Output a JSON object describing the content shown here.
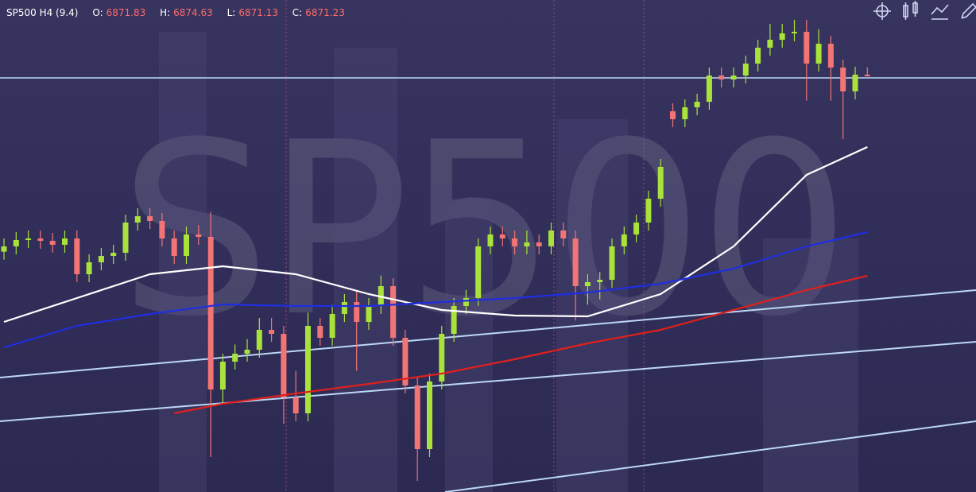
{
  "header": {
    "symbol": "SP500 H4 (9.4)",
    "labels": [
      "O:",
      "H:",
      "L:",
      "C:"
    ]
  },
  "watermark": "SP500",
  "chart_data": {
    "type": "candlestick",
    "categories": [
      null,
      null,
      null,
      null,
      null,
      null,
      null,
      null,
      null,
      null,
      null,
      null,
      null,
      null,
      null,
      null,
      null,
      null,
      null,
      null,
      null,
      null,
      null,
      null,
      null,
      null,
      null,
      null,
      null,
      null,
      null,
      null,
      null,
      null,
      null,
      null,
      null,
      null,
      null,
      null,
      null,
      null,
      null,
      null,
      null,
      null,
      null,
      null,
      null,
      null,
      null,
      null,
      null,
      null,
      null,
      null,
      null,
      null,
      null,
      null,
      null,
      null,
      null,
      null,
      null,
      null,
      null,
      null,
      null,
      null,
      null,
      null
    ],
    "ylim": [
      6714.3,
      6900
    ],
    "up_color": "#a9e23a",
    "down_color": "#f27474",
    "open": [
      6805,
      6807,
      6809.4,
      6810,
      6809.1,
      6807.6,
      6810,
      6796.5,
      6801,
      6803.4,
      6804.6,
      6816,
      6818.4,
      6816.6,
      6810,
      6803.4,
      6811.5,
      6810.6,
      6753,
      6763.5,
      6766.5,
      6768,
      6775.5,
      6774,
      6750,
      6744,
      6777,
      6772.5,
      6781.5,
      6786,
      6778.5,
      6784.5,
      6792,
      6772.5,
      6754.5,
      6730.5,
      6756,
      6774,
      6784.5,
      6787.5,
      6807,
      6811.5,
      6810,
      6807,
      6808.5,
      6807,
      6813,
      6810,
      6792,
      6793.5,
      6794.4,
      6807,
      6811.5,
      6816,
      6825,
      6858,
      6855,
      6859.5,
      6861.6,
      6871.5,
      6870,
      6871.5,
      6876,
      6882,
      6885,
      6887.4,
      6888,
      6876,
      6883.5,
      6874.5,
      6865.5,
      6871.83
    ],
    "high": [
      6810,
      6812.4,
      6813,
      6813,
      6812.1,
      6813,
      6813,
      6804,
      6806.4,
      6807.6,
      6819,
      6821.4,
      6821.4,
      6819.6,
      6813,
      6814.5,
      6815,
      6820,
      6766.5,
      6770,
      6772,
      6780,
      6780,
      6777,
      6760,
      6782,
      6780,
      6785,
      6789,
      6790,
      6787.5,
      6796,
      6795,
      6775.5,
      6757.5,
      6759,
      6777,
      6787.5,
      6790.5,
      6810,
      6814.5,
      6814.5,
      6813,
      6813,
      6811.5,
      6816,
      6816,
      6813,
      6796.5,
      6797.4,
      6810,
      6814.5,
      6819,
      6828,
      6840,
      6861,
      6862.5,
      6864.6,
      6874.5,
      6874.5,
      6874.5,
      6879,
      6885,
      6891,
      6891,
      6892.5,
      6892.5,
      6889,
      6886.5,
      6877.5,
      6874.8,
      6874.63
    ],
    "low": [
      6802,
      6804,
      6806.4,
      6806.1,
      6804.6,
      6804.6,
      6793.5,
      6793.5,
      6798,
      6800.4,
      6801.6,
      6813,
      6813.6,
      6807,
      6800.4,
      6800.4,
      6807.6,
      6727.5,
      6748,
      6760.5,
      6763.5,
      6765,
      6771,
      6740,
      6741,
      6741,
      6769.5,
      6769.5,
      6778.5,
      6760,
      6775.5,
      6781.5,
      6769.5,
      6751.5,
      6718.5,
      6727.5,
      6753,
      6771,
      6781.5,
      6784.5,
      6804,
      6807,
      6804,
      6804,
      6804,
      6804,
      6807,
      6779,
      6785,
      6787,
      6791.4,
      6804,
      6808.5,
      6813,
      6822,
      6852,
      6852,
      6856.5,
      6858.6,
      6867,
      6867,
      6868.5,
      6873,
      6879,
      6882,
      6884.4,
      6862,
      6873,
      6862,
      6847.5,
      6862.5,
      6871.13
    ],
    "close": [
      6807,
      6809.4,
      6810,
      6809.1,
      6807.6,
      6810,
      6796.5,
      6801,
      6803.4,
      6804.6,
      6816,
      6818.4,
      6816.6,
      6810,
      6803.4,
      6811.5,
      6810.6,
      6753,
      6763.5,
      6766.5,
      6768,
      6775.5,
      6774,
      6750,
      6744,
      6777,
      6772.5,
      6781.5,
      6786,
      6778.5,
      6784.5,
      6792,
      6772.5,
      6754.5,
      6730.5,
      6756,
      6774,
      6784.5,
      6787.5,
      6807,
      6811.5,
      6810,
      6807,
      6808.5,
      6807,
      6813,
      6810,
      6792,
      6793.5,
      6794.4,
      6807,
      6811.5,
      6816,
      6825,
      6837,
      6855,
      6859.5,
      6861.6,
      6871.5,
      6870,
      6871.5,
      6876,
      6882,
      6885,
      6887.4,
      6888,
      6876,
      6883.5,
      6874.5,
      6865.5,
      6871.83,
      6871.23
    ],
    "lines": [
      {
        "color": "#ffffff",
        "x": [
          0,
          6,
          12,
          18,
          24,
          30,
          36,
          42,
          48,
          54,
          60,
          66,
          71
        ],
        "values": [
          6778.5,
          6787.5,
          6796.5,
          6799.5,
          6796.5,
          6789,
          6783,
          6780.9,
          6780.6,
          6789,
          6807,
          6834,
          6844.5
        ]
      },
      {
        "color": "#1f2ee0",
        "x": [
          0,
          6,
          12,
          18,
          24,
          30,
          36,
          42,
          48,
          54,
          60,
          66,
          71
        ],
        "values": [
          6768.9,
          6777,
          6781.5,
          6785.1,
          6784.5,
          6784.5,
          6786,
          6787.5,
          6789.6,
          6792.9,
          6798.6,
          6807,
          6812.4
        ]
      },
      {
        "color": "#e0201c",
        "x": [
          14,
          18,
          24,
          30,
          36,
          42,
          48,
          54,
          60,
          66,
          71
        ],
        "values": [
          6744,
          6747.6,
          6751.5,
          6755.1,
          6759,
          6764.4,
          6770.4,
          6775.5,
          6783,
          6790.5,
          6795.9
        ]
      }
    ]
  }
}
